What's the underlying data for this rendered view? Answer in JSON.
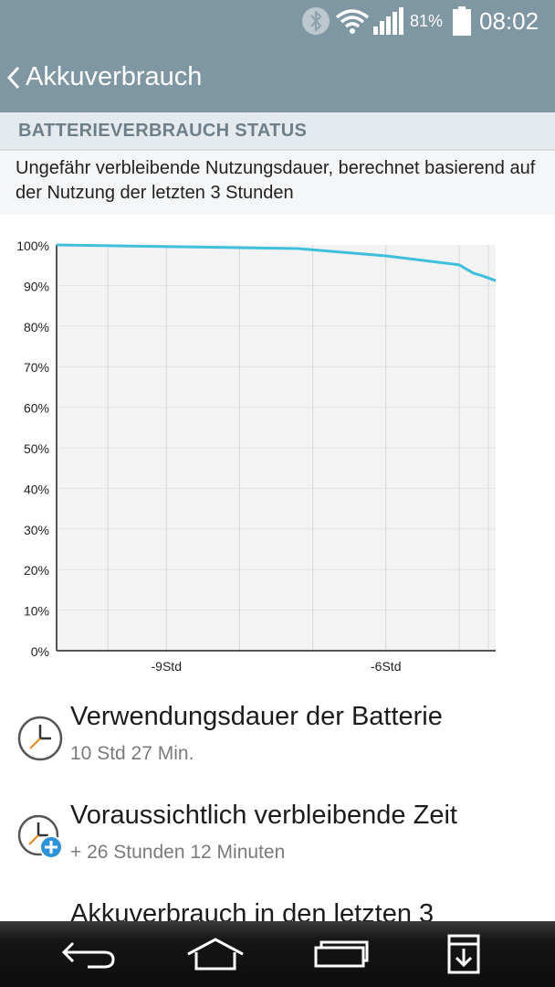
{
  "status_bar": {
    "battery_percent": "81%",
    "time": "08:02",
    "icons": [
      "bluetooth-icon",
      "wifi-icon",
      "signal-icon",
      "battery-icon"
    ]
  },
  "header": {
    "title": "Akkuverbrauch"
  },
  "section": {
    "title": "BATTERIEVERBRAUCH STATUS",
    "description": "Ungefähr verbleibende Nutzungsdauer, berechnet basierend auf der Nutzung der letzten 3 Stunden"
  },
  "chart_data": {
    "type": "line",
    "y_ticks": [
      "100%",
      "90%",
      "80%",
      "70%",
      "60%",
      "50%",
      "40%",
      "30%",
      "20%",
      "10%",
      "0%"
    ],
    "x_tick_labels": [
      "-9Std",
      "-6Std"
    ],
    "ylim": [
      0,
      100
    ],
    "xlim": [
      -10.5,
      -4.5
    ],
    "x_tick_positions": [
      -9.8,
      -9,
      -8,
      -7,
      -6,
      -5,
      -4.6
    ],
    "series": [
      {
        "color": "#3fbfdc",
        "x": [
          -10.5,
          -7.2,
          -6,
          -5,
          -4.8,
          -4.7,
          -4.5
        ],
        "y": [
          100,
          99.1,
          97.3,
          95.1,
          93,
          92.5,
          91.2
        ]
      }
    ],
    "grid": true,
    "line_color": "#3fbfdc"
  },
  "items": [
    {
      "icon": "clock-icon",
      "title": "Verwendungsdauer der Batterie",
      "subtitle": "10 Std 27 Min."
    },
    {
      "icon": "clock-add-icon",
      "title": "Voraussichtlich verbleibende Zeit",
      "subtitle": "+ 26 Stunden 12 Minuten"
    },
    {
      "icon": "",
      "title": "Akkuverbrauch in den letzten 3",
      "subtitle": ""
    }
  ],
  "nav": [
    "back-icon",
    "home-icon",
    "recent-apps-icon",
    "download-icon"
  ]
}
